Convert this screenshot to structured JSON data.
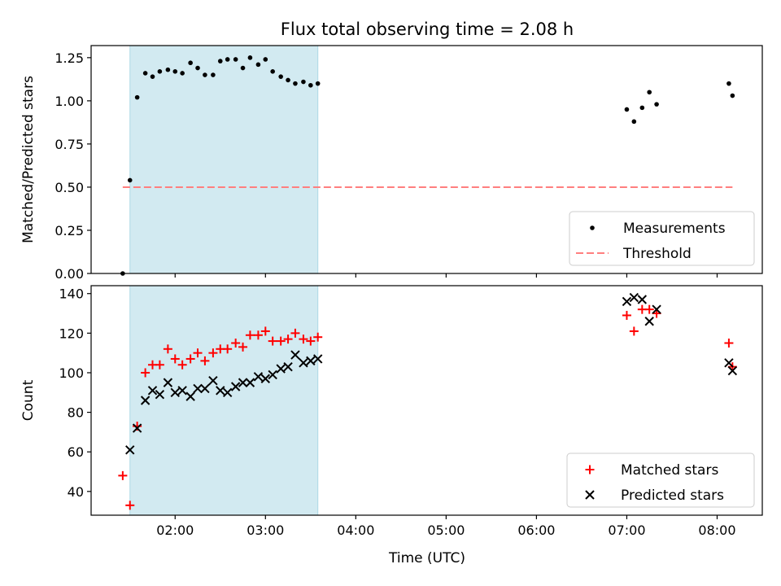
{
  "title": "Flux total observing time = 2.08 h",
  "xlabel": "Time (UTC)",
  "colors": {
    "shade": "#add8e6",
    "threshold": "#ff7f7f",
    "matched": "#ff0000",
    "predicted": "#000000",
    "measurements": "#000000"
  },
  "chart_data": [
    {
      "type": "scatter",
      "panel": "top",
      "title": "Flux total observing time = 2.08 h",
      "xlabel": "",
      "ylabel": "Matched/Predicted stars",
      "x_unit": "hours UTC",
      "xlim": [
        1.07,
        8.5
      ],
      "ylim": [
        0.0,
        1.32
      ],
      "ytick_labels": [
        "0.00",
        "0.25",
        "0.50",
        "0.75",
        "1.00",
        "1.25"
      ],
      "shaded_span": [
        1.5,
        3.58
      ],
      "grid": false,
      "legend_placement": "lower right",
      "series": [
        {
          "name": "Measurements",
          "marker": "dot",
          "color": "#000000",
          "x": [
            1.42,
            1.5,
            1.58,
            1.67,
            1.75,
            1.83,
            1.92,
            2.0,
            2.08,
            2.17,
            2.25,
            2.33,
            2.42,
            2.5,
            2.58,
            2.67,
            2.75,
            2.83,
            2.92,
            3.0,
            3.08,
            3.17,
            3.25,
            3.33,
            3.42,
            3.5,
            3.58,
            7.0,
            7.08,
            7.17,
            7.25,
            7.33,
            8.13,
            8.17
          ],
          "y": [
            0.0,
            0.54,
            1.02,
            1.16,
            1.14,
            1.17,
            1.18,
            1.17,
            1.16,
            1.22,
            1.19,
            1.15,
            1.15,
            1.23,
            1.24,
            1.24,
            1.19,
            1.25,
            1.21,
            1.24,
            1.17,
            1.14,
            1.12,
            1.1,
            1.11,
            1.09,
            1.1,
            0.95,
            0.88,
            0.96,
            1.05,
            0.98,
            1.1,
            1.03
          ]
        },
        {
          "name": "Threshold",
          "marker": "dashed-line",
          "color": "#ff7f7f",
          "x": [
            1.42,
            8.17
          ],
          "y": [
            0.5,
            0.5
          ]
        }
      ]
    },
    {
      "type": "scatter",
      "panel": "bottom",
      "xlabel": "Time (UTC)",
      "ylabel": "Count",
      "x_unit": "hours UTC",
      "xlim": [
        1.07,
        8.5
      ],
      "ylim": [
        28,
        144
      ],
      "xtick_values": [
        2,
        3,
        4,
        5,
        6,
        7,
        8
      ],
      "xtick_labels": [
        "02:00",
        "03:00",
        "04:00",
        "05:00",
        "06:00",
        "07:00",
        "08:00"
      ],
      "ytick_labels": [
        "40",
        "60",
        "80",
        "100",
        "120",
        "140"
      ],
      "shaded_span": [
        1.5,
        3.58
      ],
      "grid": false,
      "legend_placement": "lower right",
      "series": [
        {
          "name": "Matched stars",
          "marker": "plus",
          "color": "#ff0000",
          "x": [
            1.42,
            1.5,
            1.58,
            1.67,
            1.75,
            1.83,
            1.92,
            2.0,
            2.08,
            2.17,
            2.25,
            2.33,
            2.42,
            2.5,
            2.58,
            2.67,
            2.75,
            2.83,
            2.92,
            3.0,
            3.08,
            3.17,
            3.25,
            3.33,
            3.42,
            3.5,
            3.58,
            7.0,
            7.08,
            7.17,
            7.25,
            7.33,
            8.13,
            8.17
          ],
          "y": [
            48,
            33,
            73,
            100,
            104,
            104,
            112,
            107,
            104,
            107,
            110,
            106,
            110,
            112,
            112,
            115,
            113,
            119,
            119,
            121,
            116,
            116,
            117,
            120,
            117,
            116,
            118,
            129,
            121,
            132,
            132,
            130,
            115,
            103
          ]
        },
        {
          "name": "Predicted stars",
          "marker": "x",
          "color": "#000000",
          "x": [
            1.5,
            1.58,
            1.67,
            1.75,
            1.83,
            1.92,
            2.0,
            2.08,
            2.17,
            2.25,
            2.33,
            2.42,
            2.5,
            2.58,
            2.67,
            2.75,
            2.83,
            2.92,
            3.0,
            3.08,
            3.17,
            3.25,
            3.33,
            3.42,
            3.5,
            3.58,
            7.0,
            7.08,
            7.17,
            7.25,
            7.33,
            8.13,
            8.17
          ],
          "y": [
            61,
            72,
            86,
            91,
            89,
            95,
            90,
            91,
            88,
            92,
            92,
            96,
            91,
            90,
            93,
            95,
            95,
            98,
            97,
            99,
            102,
            103,
            109,
            105,
            106,
            107,
            136,
            138,
            137,
            126,
            132,
            105,
            101
          ]
        }
      ]
    }
  ]
}
